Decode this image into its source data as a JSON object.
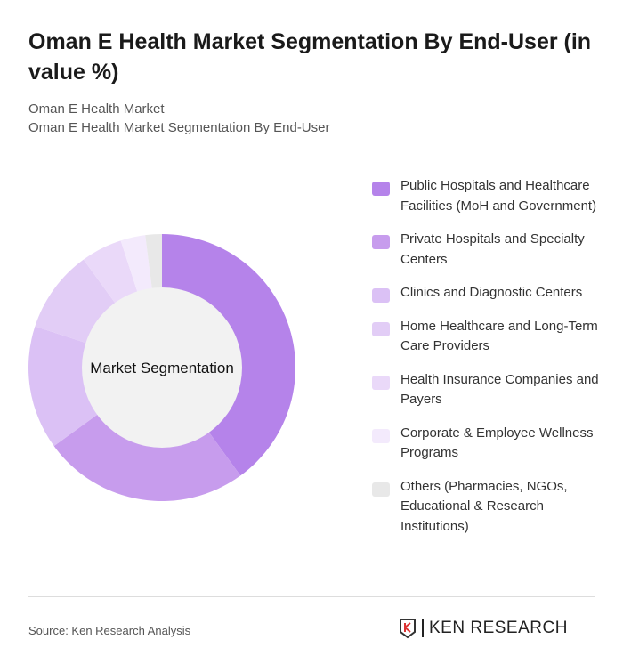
{
  "title": "Oman E Health Market Segmentation By End-User (in value %)",
  "subtitle1": "Oman E Health Market",
  "subtitle2": "Oman E Health Market Segmentation By End-User",
  "source": "Source: Ken Research Analysis",
  "logo_text": "KEN RESEARCH",
  "chart_data": {
    "type": "pie",
    "center_label": "Market Segmentation",
    "categories": [
      "Public Hospitals and Healthcare Facilities (MoH and Government)",
      "Private Hospitals and Specialty Centers",
      "Clinics and Diagnostic Centers",
      "Home Healthcare and Long-Term Care Providers",
      "Health Insurance Companies and Payers",
      "Corporate & Employee Wellness Programs",
      "Others (Pharmacies, NGOs, Educational & Research Institutions)"
    ],
    "values": [
      40,
      25,
      15,
      10,
      5,
      3,
      2
    ],
    "colors": [
      "#b583ea",
      "#c79ced",
      "#dbc1f5",
      "#e2cdf6",
      "#ead9f9",
      "#f3eafc",
      "#e8e8e8"
    ],
    "legend_position": "right"
  }
}
